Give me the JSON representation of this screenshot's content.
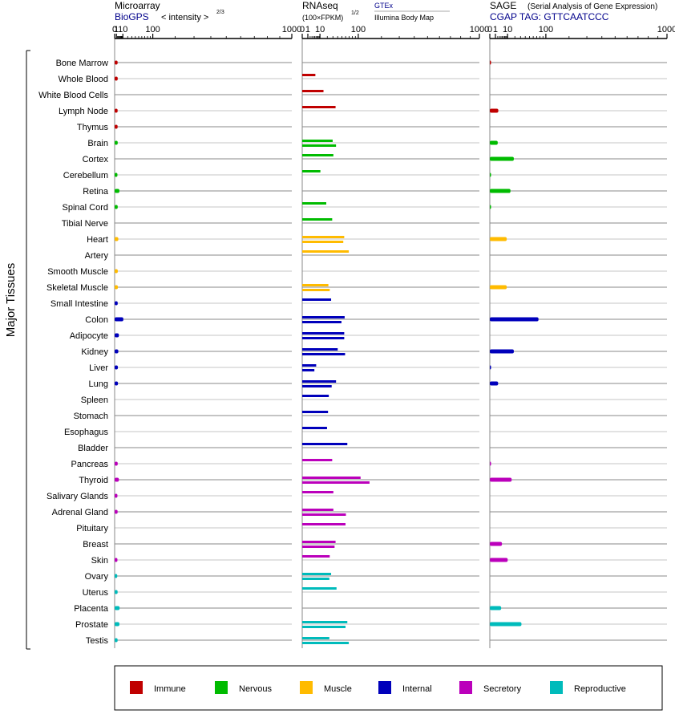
{
  "panels": {
    "microarray": {
      "title": "Microarray",
      "subtitle": "BioGPS",
      "unit_label": "< intensity >",
      "unit_exponent": "2/3"
    },
    "rnaseq": {
      "title": "RNAseq",
      "unit_label": "(100×FPKM)",
      "unit_exponent": "1/2",
      "source_top": "GTEx",
      "source_bottom": "Illumina Body Map"
    },
    "sage": {
      "title": "SAGE",
      "title_note": "(Serial Analysis of Gene Expression)",
      "tag_line": "CGAP TAG: GTTCAATCCC"
    }
  },
  "y_axis_label": "Major Tissues",
  "colors": {
    "Immune": "#c00000",
    "Nervous": "#00bb00",
    "Muscle": "#ffbb00",
    "Internal": "#0000bb",
    "Secretory": "#bb00bb",
    "Reproductive": "#00bbbb"
  },
  "legend": [
    "Immune",
    "Nervous",
    "Muscle",
    "Internal",
    "Secretory",
    "Reproductive"
  ],
  "chart_data": {
    "type": "bar",
    "x_scale": "power",
    "xlim": [
      0,
      1000
    ],
    "x_ticks": [
      "0",
      "1",
      "10",
      "100",
      "1000"
    ],
    "tick_values": [
      0,
      1,
      10,
      100,
      1000
    ],
    "tissues": [
      {
        "name": "Bone Marrow",
        "group": "Immune",
        "microarray": 2.2,
        "rnaseq": [],
        "sage": 0.01
      },
      {
        "name": "Whole Blood",
        "group": "Immune",
        "microarray": 2.3,
        "rnaseq": [
          5.5
        ],
        "sage": null
      },
      {
        "name": "White Blood Cells",
        "group": "Immune",
        "microarray": null,
        "rnaseq": [
          14.4
        ],
        "sage": null
      },
      {
        "name": "Lymph Node",
        "group": "Immune",
        "microarray": 2.2,
        "rnaseq": [
          35.4
        ],
        "sage": 2.3
      },
      {
        "name": "Thymus",
        "group": "Immune",
        "microarray": 2.2,
        "rnaseq": [],
        "sage": null
      },
      {
        "name": "Brain",
        "group": "Nervous",
        "microarray": 2.3,
        "rnaseq": [
          29.5,
          36.4
        ],
        "sage": 2.0
      },
      {
        "name": "Cortex",
        "group": "Nervous",
        "microarray": null,
        "rnaseq": [
          30.9
        ],
        "sage": 18.4
      },
      {
        "name": "Cerebellum",
        "group": "Nervous",
        "microarray": 2.0,
        "rnaseq": [
          10.5
        ],
        "sage": 0.01
      },
      {
        "name": "Retina",
        "group": "Nervous",
        "microarray": 4.4,
        "rnaseq": [],
        "sage": 13.6
      },
      {
        "name": "Spinal Cord",
        "group": "Nervous",
        "microarray": 2.3,
        "rnaseq": [
          18.4
        ],
        "sage": 0.01
      },
      {
        "name": "Tibial Nerve",
        "group": "Nervous",
        "microarray": null,
        "rnaseq": [
          28.6
        ],
        "sage": null
      },
      {
        "name": "Heart",
        "group": "Muscle",
        "microarray": 3.0,
        "rnaseq": [
          56.2,
          53.7
        ],
        "sage": 9.1
      },
      {
        "name": "Artery",
        "group": "Muscle",
        "microarray": null,
        "rnaseq": [
          69.1
        ],
        "sage": null
      },
      {
        "name": "Smooth Muscle",
        "group": "Muscle",
        "microarray": 2.4,
        "rnaseq": [],
        "sage": null
      },
      {
        "name": "Skeletal Muscle",
        "group": "Muscle",
        "microarray": 2.5,
        "rnaseq": [
          21.8,
          24.1
        ],
        "sage": 9.1
      },
      {
        "name": "Small Intestine",
        "group": "Internal",
        "microarray": 2.3,
        "rnaseq": [
          26.6
        ],
        "sage": null
      },
      {
        "name": "Colon",
        "group": "Internal",
        "microarray": 10.9,
        "rnaseq": [
          57.3,
          49.0
        ],
        "sage": 75.5
      },
      {
        "name": "Adipocyte",
        "group": "Internal",
        "microarray": 3.7,
        "rnaseq": [
          56.2,
          56.2
        ],
        "sage": null
      },
      {
        "name": "Kidney",
        "group": "Internal",
        "microarray": 3.0,
        "rnaseq": [
          40.1,
          58.5
        ],
        "sage": 18.4
      },
      {
        "name": "Liver",
        "group": "Internal",
        "microarray": 2.5,
        "rnaseq": [
          6.2,
          4.7
        ],
        "sage": 0.01
      },
      {
        "name": "Lung",
        "group": "Internal",
        "microarray": 2.6,
        "rnaseq": [
          36.4,
          27.6
        ],
        "sage": 2.2
      },
      {
        "name": "Spleen",
        "group": "Internal",
        "microarray": null,
        "rnaseq": [
          22.5
        ],
        "sage": null
      },
      {
        "name": "Stomach",
        "group": "Internal",
        "microarray": null,
        "rnaseq": [
          21.2
        ],
        "sage": null
      },
      {
        "name": "Esophagus",
        "group": "Internal",
        "microarray": null,
        "rnaseq": [
          19.6
        ],
        "sage": null
      },
      {
        "name": "Bladder",
        "group": "Internal",
        "microarray": null,
        "rnaseq": [
          64.8
        ],
        "sage": null
      },
      {
        "name": "Pancreas",
        "group": "Secretory",
        "microarray": 2.3,
        "rnaseq": [
          28.6
        ],
        "sage": 0.01
      },
      {
        "name": "Thyroid",
        "group": "Secretory",
        "microarray": 3.7,
        "rnaseq": [
          108.5,
          144.3
        ],
        "sage": 15.2
      },
      {
        "name": "Salivary Glands",
        "group": "Secretory",
        "microarray": 2.0,
        "rnaseq": [
          30.9
        ],
        "sage": null
      },
      {
        "name": "Adrenal Gland",
        "group": "Secretory",
        "microarray": 2.2,
        "rnaseq": [
          30.9,
          60.8
        ],
        "sage": null
      },
      {
        "name": "Pituitary",
        "group": "Secretory",
        "microarray": null,
        "rnaseq": [
          59.7
        ],
        "sage": null
      },
      {
        "name": "Breast",
        "group": "Secretory",
        "microarray": null,
        "rnaseq": [
          35.4,
          33.3
        ],
        "sage": 4.7
      },
      {
        "name": "Skin",
        "group": "Secretory",
        "microarray": 2.0,
        "rnaseq": [
          24.1
        ],
        "sage": 10.2
      },
      {
        "name": "Ovary",
        "group": "Reproductive",
        "microarray": 1.8,
        "rnaseq": [
          26.6,
          23.4
        ],
        "sage": null
      },
      {
        "name": "Uterus",
        "group": "Reproductive",
        "microarray": 2.2,
        "rnaseq": [
          37.5
        ],
        "sage": null
      },
      {
        "name": "Placenta",
        "group": "Reproductive",
        "microarray": 4.7,
        "rnaseq": [],
        "sage": 4.1
      },
      {
        "name": "Prostate",
        "group": "Reproductive",
        "microarray": 4.4,
        "rnaseq": [
          64.8,
          59.7
        ],
        "sage": 31.9
      },
      {
        "name": "Testis",
        "group": "Reproductive",
        "microarray": 2.2,
        "rnaseq": [
          23.4,
          69.1
        ],
        "sage": null
      }
    ]
  }
}
